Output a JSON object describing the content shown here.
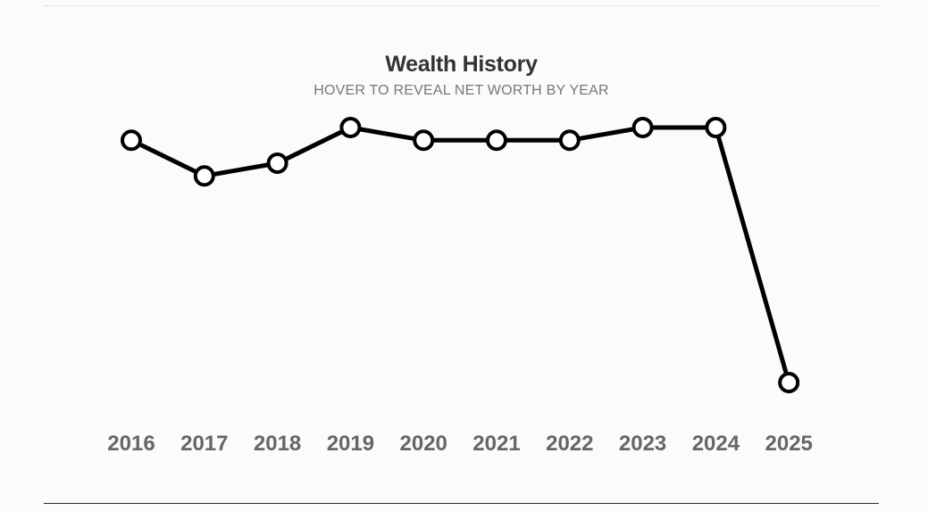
{
  "header": {
    "title": "Wealth History",
    "subtitle": "HOVER TO REVEAL NET WORTH BY YEAR"
  },
  "colors": {
    "line": "#000000",
    "marker_fill": "#ffffff",
    "tick_label": "#666666",
    "background": "#fbfbfb"
  },
  "chart_data": {
    "type": "line",
    "title": "Wealth History",
    "subtitle": "HOVER TO REVEAL NET WORTH BY YEAR",
    "xlabel": "",
    "ylabel": "",
    "categories": [
      "2016",
      "2017",
      "2018",
      "2019",
      "2020",
      "2021",
      "2022",
      "2023",
      "2024",
      "2025"
    ],
    "series": [
      {
        "values": [
          0.95,
          0.81,
          0.86,
          1.0,
          0.95,
          0.95,
          0.95,
          1.0,
          1.0,
          0.0
        ]
      }
    ],
    "y_axis_visible": false,
    "grid": false,
    "legend": "none"
  }
}
